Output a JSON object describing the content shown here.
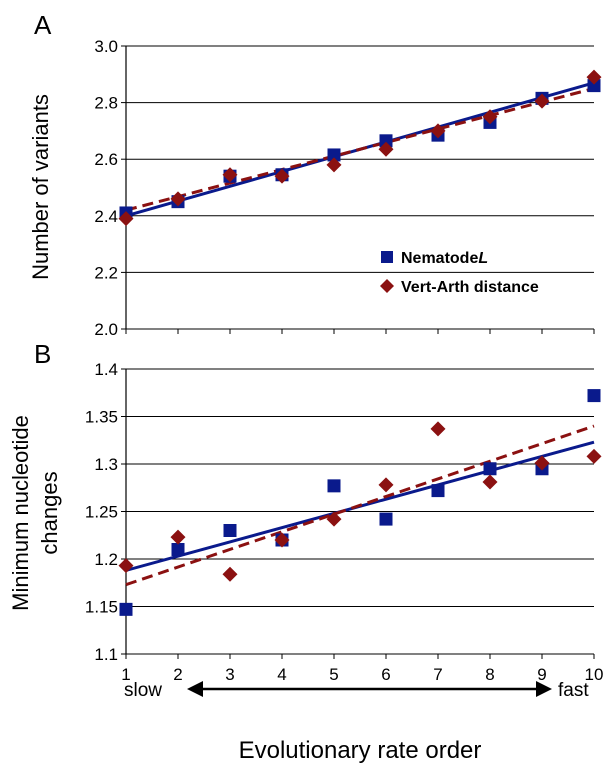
{
  "chart_data": [
    {
      "type": "scatter",
      "panel_label": "A",
      "ylabel": "Number of variants",
      "ylim": [
        2.0,
        3.0
      ],
      "yticks": [
        "2.0",
        "2.2",
        "2.4",
        "2.6",
        "2.8",
        "3.0"
      ],
      "grid": true,
      "legend_position": "bottom-right",
      "x": [
        1,
        2,
        3,
        4,
        5,
        6,
        7,
        8,
        9,
        10
      ],
      "series": [
        {
          "name": "Nematode L",
          "name_main": "Nematode",
          "name_italic": "L",
          "marker": "square",
          "color": "#0a1a8c",
          "values": [
            2.41,
            2.45,
            2.54,
            2.545,
            2.615,
            2.665,
            2.685,
            2.73,
            2.815,
            2.86
          ],
          "trend": [
            2.4,
            2.87
          ],
          "trend_style": "solid"
        },
        {
          "name": "Vert-Arth distance",
          "marker": "diamond",
          "color": "#8b1111",
          "values": [
            2.39,
            2.46,
            2.545,
            2.54,
            2.58,
            2.635,
            2.7,
            2.75,
            2.805,
            2.89
          ],
          "trend": [
            2.42,
            2.85
          ],
          "trend_style": "dashed"
        }
      ]
    },
    {
      "type": "scatter",
      "panel_label": "B",
      "ylabel_lines": [
        "Minimum nucleotide",
        "changes"
      ],
      "ylim": [
        1.1,
        1.4
      ],
      "yticks": [
        "1.1",
        "1.15",
        "1.2",
        "1.25",
        "1.3",
        "1.35",
        "1.4"
      ],
      "grid": true,
      "x": [
        1,
        2,
        3,
        4,
        5,
        6,
        7,
        8,
        9,
        10
      ],
      "xticks": [
        "1",
        "2",
        "3",
        "4",
        "5",
        "6",
        "7",
        "8",
        "9",
        "10"
      ],
      "series": [
        {
          "name": "Nematode L",
          "marker": "square",
          "color": "#0a1a8c",
          "values": [
            1.147,
            1.21,
            1.23,
            1.22,
            1.277,
            1.242,
            1.272,
            1.295,
            1.295,
            1.372
          ],
          "trend": [
            1.188,
            1.323
          ],
          "trend_style": "solid"
        },
        {
          "name": "Vert-Arth distance",
          "marker": "diamond",
          "color": "#8b1111",
          "values": [
            1.193,
            1.223,
            1.184,
            1.22,
            1.242,
            1.278,
            1.337,
            1.281,
            1.301,
            1.308
          ],
          "trend": [
            1.173,
            1.34
          ],
          "trend_style": "dashed"
        }
      ]
    }
  ],
  "axis": {
    "slow_label": "slow",
    "fast_label": "fast",
    "xlabel": "Evolutionary rate order"
  }
}
